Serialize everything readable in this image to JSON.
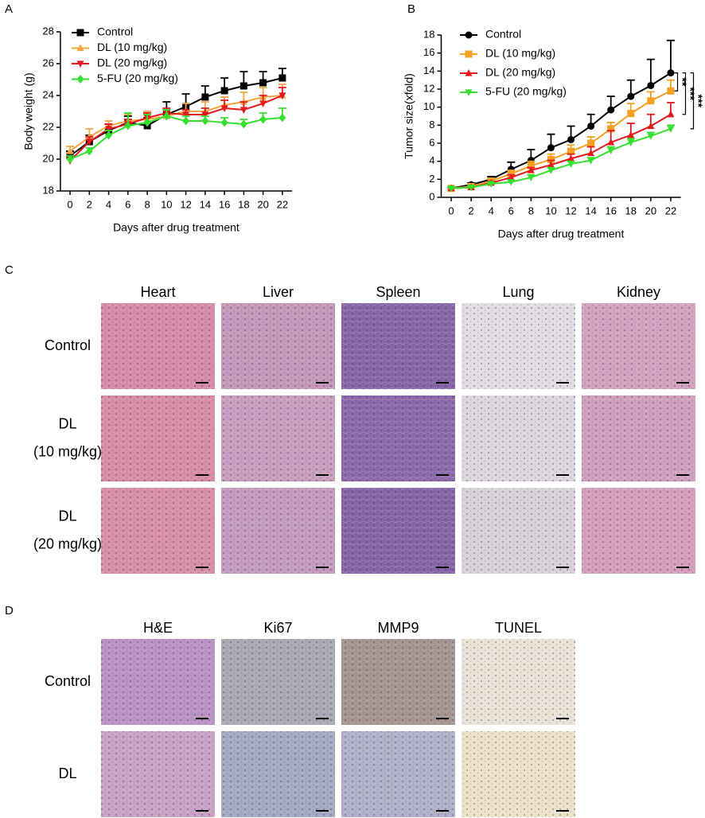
{
  "panels": [
    "A",
    "B",
    "C",
    "D"
  ],
  "chart_data": [
    {
      "type": "line",
      "x_label": "Days after drug treatment",
      "y_label": "Body weight (g)",
      "x": [
        0,
        2,
        4,
        6,
        8,
        10,
        12,
        14,
        16,
        18,
        20,
        22
      ],
      "xlim": [
        -1,
        23
      ],
      "xticks": [
        0,
        2,
        4,
        6,
        8,
        10,
        12,
        14,
        16,
        18,
        20,
        22
      ],
      "ylim": [
        18,
        28
      ],
      "yticks": [
        18,
        20,
        22,
        24,
        26,
        28
      ],
      "grid": false,
      "legend": "top-left",
      "series": [
        {
          "name": "Control",
          "color": "#000000",
          "marker": "square",
          "values": [
            20.2,
            21.1,
            21.8,
            22.3,
            22.1,
            22.8,
            23.3,
            23.9,
            24.3,
            24.6,
            24.8,
            25.1
          ],
          "errors": [
            0.3,
            0.4,
            0.4,
            0.4,
            0.5,
            0.8,
            0.8,
            0.7,
            0.8,
            0.9,
            0.7,
            0.6
          ]
        },
        {
          "name": "DL (10 mg/kg)",
          "color": "#f5a540",
          "marker": "triangle-up",
          "values": [
            20.5,
            21.4,
            22.1,
            22.4,
            22.5,
            22.7,
            23.0,
            23.0,
            23.4,
            23.6,
            23.9,
            24.0
          ],
          "errors": [
            0.3,
            0.5,
            0.3,
            0.4,
            0.5,
            0.4,
            0.5,
            0.6,
            0.5,
            0.6,
            0.6,
            0.7
          ]
        },
        {
          "name": "DL (20 mg/kg)",
          "color": "#e3191c",
          "marker": "triangle-down",
          "values": [
            19.9,
            21.1,
            21.9,
            22.2,
            22.6,
            22.9,
            22.8,
            22.8,
            23.2,
            23.1,
            23.5,
            24.0
          ],
          "errors": [
            0.2,
            0.3,
            0.3,
            0.3,
            0.3,
            0.3,
            0.3,
            0.4,
            0.5,
            0.5,
            0.5,
            0.5
          ]
        },
        {
          "name": "5-FU (20 mg/kg)",
          "color": "#33e02e",
          "marker": "diamond",
          "values": [
            20.0,
            20.5,
            21.5,
            22.1,
            22.3,
            22.7,
            22.4,
            22.4,
            22.3,
            22.2,
            22.5,
            22.6
          ],
          "errors": [
            0.2,
            0.2,
            0.3,
            0.8,
            0.5,
            0.4,
            0.3,
            0.3,
            0.3,
            0.3,
            0.4,
            0.6
          ]
        }
      ]
    },
    {
      "type": "line",
      "x_label": "Days after drug treatment",
      "y_label": "Tumor size(xfold)",
      "x": [
        0,
        2,
        4,
        6,
        8,
        10,
        12,
        14,
        16,
        18,
        20,
        22
      ],
      "xlim": [
        -1,
        23
      ],
      "xticks": [
        0,
        2,
        4,
        6,
        8,
        10,
        12,
        14,
        16,
        18,
        20,
        22
      ],
      "ylim": [
        0,
        18
      ],
      "yticks": [
        0,
        2,
        4,
        6,
        8,
        10,
        12,
        14,
        16,
        18
      ],
      "grid": false,
      "legend": "top-left",
      "series": [
        {
          "name": "Control",
          "color": "#000000",
          "marker": "circle",
          "values": [
            1.0,
            1.4,
            2.0,
            3.1,
            4.1,
            5.5,
            6.4,
            7.9,
            9.7,
            11.2,
            12.4,
            13.8
          ],
          "errors": [
            0.1,
            0.2,
            0.3,
            0.8,
            1.2,
            1.5,
            1.5,
            1.3,
            1.5,
            1.8,
            2.9,
            3.6
          ]
        },
        {
          "name": "DL (10 mg/kg)",
          "color": "#f5a020",
          "marker": "square",
          "values": [
            1.0,
            1.2,
            1.8,
            2.6,
            3.5,
            4.2,
            5.1,
            6.0,
            7.6,
            9.3,
            10.7,
            11.8
          ],
          "errors": [
            0.1,
            0.1,
            0.3,
            0.4,
            0.5,
            0.6,
            0.7,
            0.7,
            0.7,
            1.1,
            1.0,
            1.2
          ]
        },
        {
          "name": "DL (20 mg/kg)",
          "color": "#e3191c",
          "marker": "triangle-up",
          "values": [
            1.0,
            1.1,
            1.6,
            2.2,
            3.0,
            3.6,
            4.3,
            4.9,
            6.1,
            6.9,
            7.9,
            9.2
          ],
          "errors": [
            0.1,
            0.1,
            0.2,
            0.3,
            0.3,
            0.5,
            0.5,
            0.7,
            1.3,
            1.3,
            1.3,
            1.3
          ]
        },
        {
          "name": "5-FU (20 mg/kg)",
          "color": "#33e02e",
          "marker": "triangle-down",
          "values": [
            1.0,
            1.1,
            1.5,
            1.7,
            2.2,
            3.0,
            3.7,
            4.1,
            5.2,
            6.1,
            6.8,
            7.6
          ],
          "errors": [
            0.1,
            0.1,
            0.1,
            0.2,
            0.3,
            0.3,
            0.3,
            0.3,
            0.4,
            0.4,
            0.4,
            0.4
          ]
        }
      ],
      "annotations": [
        {
          "text": "**",
          "color": "#f5a020"
        },
        {
          "text": "***",
          "color": "#e3191c"
        },
        {
          "text": "***",
          "color": "#33e02e"
        }
      ]
    }
  ],
  "histology_c": {
    "columns": [
      "Heart",
      "Liver",
      "Spleen",
      "Lung",
      "Kidney"
    ],
    "rows": [
      [
        "Control"
      ],
      [
        "DL",
        "(10 mg/kg)"
      ],
      [
        "DL",
        "(20 mg/kg)"
      ]
    ]
  },
  "histology_d": {
    "columns": [
      "H&E",
      "Ki67",
      "MMP9",
      "TUNEL"
    ],
    "rows": [
      [
        "Control"
      ],
      [
        "DL"
      ]
    ]
  }
}
